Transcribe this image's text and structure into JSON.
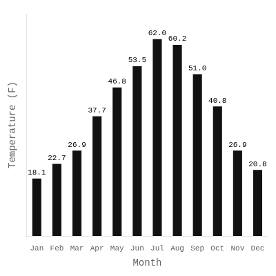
{
  "chart_data": {
    "type": "bar",
    "categories": [
      "Jan",
      "Feb",
      "Mar",
      "Apr",
      "May",
      "Jun",
      "Jul",
      "Aug",
      "Sep",
      "Oct",
      "Nov",
      "Dec"
    ],
    "values": [
      18.1,
      22.7,
      26.9,
      37.7,
      46.8,
      53.5,
      62.0,
      60.2,
      51.0,
      40.8,
      26.9,
      20.8
    ],
    "value_labels": [
      "18.1",
      "22.7",
      "26.9",
      "37.7",
      "46.8",
      "53.5",
      "62.0",
      "60.2",
      "51.0",
      "40.8",
      "26.9",
      "20.8"
    ],
    "color": "#111111",
    "x_label": "Month",
    "y_label": "Temperature (F)",
    "ylim": [
      0,
      70
    ],
    "grid": false,
    "data_labels": true,
    "tick_labels": "x"
  }
}
